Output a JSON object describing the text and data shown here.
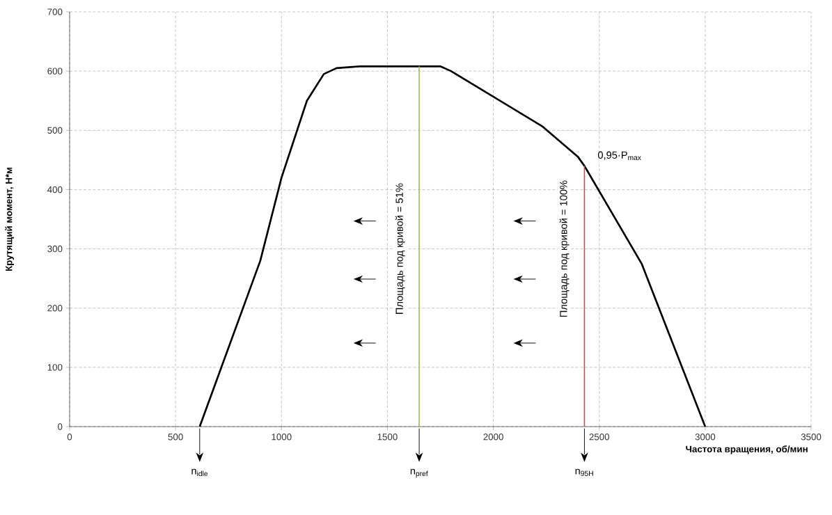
{
  "chart_data": {
    "type": "line",
    "xlabel": "Частота вращения, об/мин",
    "ylabel": "Крутящий момент, Н*м",
    "xlim": [
      0,
      3500
    ],
    "ylim": [
      0,
      700
    ],
    "xticks": [
      0,
      500,
      1000,
      1500,
      2000,
      2500,
      3000,
      3500
    ],
    "yticks": [
      0,
      100,
      200,
      300,
      400,
      500,
      600,
      700
    ],
    "grid": true,
    "series": [
      {
        "color": "#000000",
        "x": [
          614,
          900,
          1000,
          1120,
          1200,
          1260,
          1370,
          1750,
          1800,
          2230,
          2400,
          2430,
          2700,
          3000
        ],
        "values": [
          0,
          280,
          420,
          550,
          595,
          605,
          608,
          608,
          600,
          507,
          455,
          440,
          275,
          0
        ]
      },
      {
        "color": "#9bbb59",
        "x": [
          1650,
          1650
        ],
        "values": [
          0,
          608
        ]
      },
      {
        "color": "#c0504d",
        "x": [
          2430,
          2430
        ],
        "values": [
          0,
          440
        ]
      }
    ],
    "annotations": [
      "Площадь под кривой = 51%",
      "Площадь под кривой = 100%",
      {
        "text": "0,95·P$_{max}$",
        "x": 2430,
        "y": 440
      },
      "n$_{idle}$",
      "n$_{pref}$",
      "n$_{95H}$"
    ]
  }
}
